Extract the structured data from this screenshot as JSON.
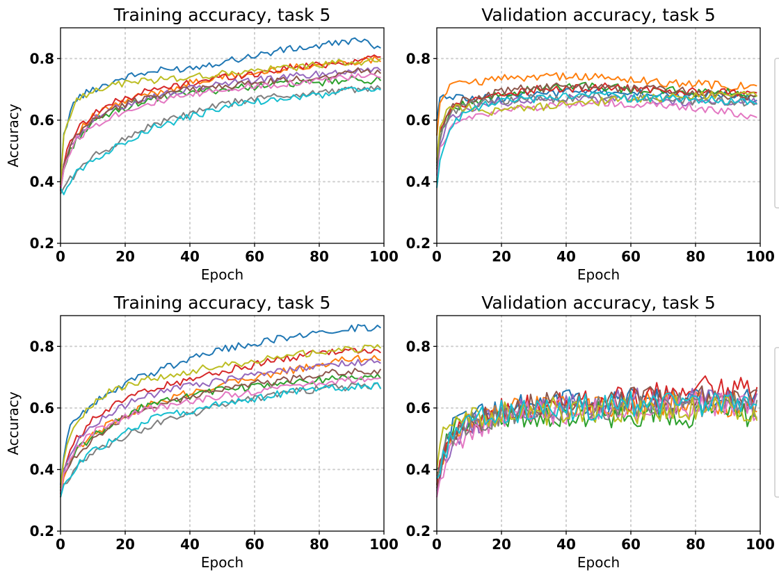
{
  "palette": [
    "#1f77b4",
    "#ff7f0e",
    "#2ca02c",
    "#d62728",
    "#9467bd",
    "#8c564b",
    "#e377c2",
    "#7f7f7f",
    "#bcbd22",
    "#17becf"
  ],
  "chart_data": [
    {
      "type": "line",
      "title": "Training accuracy, task 5",
      "xlabel": "Epoch",
      "ylabel": "Accuracy",
      "xlim": [
        0,
        100
      ],
      "ylim": [
        0.2,
        0.9
      ],
      "xticks": [
        0,
        20,
        40,
        60,
        80,
        100
      ],
      "yticks": [
        0.2,
        0.4,
        0.6,
        0.8
      ],
      "xtick_labels": [
        "0",
        "20",
        "40",
        "60",
        "80",
        "100"
      ],
      "ytick_labels": [
        "0.2",
        "0.4",
        "0.6",
        "0.8"
      ],
      "grid": true,
      "x": [
        0,
        1,
        3,
        5,
        10,
        15,
        20,
        25,
        30,
        40,
        50,
        60,
        70,
        80,
        90,
        99
      ],
      "series": [
        {
          "color": "#1f77b4",
          "values": [
            0.4,
            0.55,
            0.63,
            0.67,
            0.7,
            0.72,
            0.74,
            0.75,
            0.76,
            0.77,
            0.79,
            0.81,
            0.83,
            0.84,
            0.86,
            0.84
          ]
        },
        {
          "color": "#ff7f0e",
          "values": [
            0.38,
            0.45,
            0.52,
            0.56,
            0.61,
            0.64,
            0.66,
            0.68,
            0.69,
            0.72,
            0.74,
            0.75,
            0.77,
            0.78,
            0.79,
            0.8
          ]
        },
        {
          "color": "#2ca02c",
          "values": [
            0.37,
            0.44,
            0.5,
            0.54,
            0.59,
            0.62,
            0.64,
            0.66,
            0.67,
            0.69,
            0.7,
            0.71,
            0.72,
            0.72,
            0.73,
            0.73
          ]
        },
        {
          "color": "#d62728",
          "values": [
            0.38,
            0.46,
            0.53,
            0.57,
            0.62,
            0.65,
            0.67,
            0.69,
            0.7,
            0.72,
            0.74,
            0.75,
            0.77,
            0.78,
            0.79,
            0.81
          ]
        },
        {
          "color": "#9467bd",
          "values": [
            0.37,
            0.45,
            0.51,
            0.55,
            0.6,
            0.63,
            0.65,
            0.67,
            0.68,
            0.7,
            0.72,
            0.73,
            0.74,
            0.75,
            0.76,
            0.77
          ]
        },
        {
          "color": "#8c564b",
          "values": [
            0.37,
            0.45,
            0.51,
            0.55,
            0.6,
            0.63,
            0.65,
            0.67,
            0.68,
            0.7,
            0.71,
            0.72,
            0.73,
            0.74,
            0.76,
            0.76
          ]
        },
        {
          "color": "#e377c2",
          "values": [
            0.37,
            0.44,
            0.5,
            0.54,
            0.58,
            0.61,
            0.63,
            0.65,
            0.66,
            0.68,
            0.7,
            0.71,
            0.72,
            0.73,
            0.74,
            0.74
          ]
        },
        {
          "color": "#7f7f7f",
          "values": [
            0.36,
            0.38,
            0.41,
            0.43,
            0.48,
            0.51,
            0.54,
            0.57,
            0.59,
            0.62,
            0.65,
            0.67,
            0.68,
            0.69,
            0.7,
            0.7
          ]
        },
        {
          "color": "#bcbd22",
          "values": [
            0.39,
            0.55,
            0.62,
            0.66,
            0.7,
            0.71,
            0.72,
            0.73,
            0.73,
            0.74,
            0.75,
            0.76,
            0.77,
            0.78,
            0.79,
            0.79
          ]
        },
        {
          "color": "#17becf",
          "values": [
            0.38,
            0.37,
            0.4,
            0.43,
            0.47,
            0.5,
            0.53,
            0.56,
            0.58,
            0.61,
            0.64,
            0.66,
            0.67,
            0.68,
            0.7,
            0.7
          ]
        }
      ]
    },
    {
      "type": "line",
      "title": "Validation accuracy, task 5",
      "xlabel": "Epoch",
      "ylabel": "",
      "xlim": [
        0,
        100
      ],
      "ylim": [
        0.2,
        0.9
      ],
      "xticks": [
        0,
        20,
        40,
        60,
        80,
        100
      ],
      "yticks": [
        0.2,
        0.4,
        0.6,
        0.8
      ],
      "xtick_labels": [
        "0",
        "20",
        "40",
        "60",
        "80",
        "100"
      ],
      "ytick_labels": [
        "0.2",
        "0.4",
        "0.6",
        "0.8"
      ],
      "grid": true,
      "x": [
        0,
        1,
        3,
        5,
        10,
        15,
        20,
        25,
        30,
        40,
        50,
        60,
        70,
        80,
        90,
        99
      ],
      "series": [
        {
          "color": "#1f77b4",
          "values": [
            0.6,
            0.66,
            0.68,
            0.68,
            0.67,
            0.67,
            0.67,
            0.68,
            0.68,
            0.69,
            0.69,
            0.69,
            0.68,
            0.68,
            0.68,
            0.67
          ]
        },
        {
          "color": "#ff7f0e",
          "values": [
            0.55,
            0.65,
            0.7,
            0.71,
            0.72,
            0.73,
            0.74,
            0.74,
            0.74,
            0.74,
            0.74,
            0.73,
            0.72,
            0.72,
            0.71,
            0.71
          ]
        },
        {
          "color": "#2ca02c",
          "values": [
            0.45,
            0.55,
            0.6,
            0.63,
            0.66,
            0.67,
            0.68,
            0.69,
            0.7,
            0.71,
            0.71,
            0.7,
            0.7,
            0.69,
            0.69,
            0.68
          ]
        },
        {
          "color": "#d62728",
          "values": [
            0.47,
            0.56,
            0.61,
            0.64,
            0.66,
            0.67,
            0.68,
            0.69,
            0.7,
            0.7,
            0.71,
            0.7,
            0.7,
            0.69,
            0.69,
            0.68
          ]
        },
        {
          "color": "#9467bd",
          "values": [
            0.44,
            0.53,
            0.58,
            0.61,
            0.64,
            0.65,
            0.66,
            0.66,
            0.67,
            0.67,
            0.67,
            0.67,
            0.66,
            0.66,
            0.66,
            0.66
          ]
        },
        {
          "color": "#8c564b",
          "values": [
            0.46,
            0.56,
            0.62,
            0.65,
            0.67,
            0.68,
            0.69,
            0.7,
            0.7,
            0.71,
            0.71,
            0.7,
            0.7,
            0.69,
            0.68,
            0.68
          ]
        },
        {
          "color": "#e377c2",
          "values": [
            0.42,
            0.5,
            0.55,
            0.58,
            0.61,
            0.62,
            0.63,
            0.64,
            0.64,
            0.65,
            0.66,
            0.65,
            0.65,
            0.64,
            0.63,
            0.6
          ]
        },
        {
          "color": "#7f7f7f",
          "values": [
            0.44,
            0.54,
            0.6,
            0.63,
            0.65,
            0.66,
            0.66,
            0.67,
            0.67,
            0.67,
            0.68,
            0.67,
            0.67,
            0.66,
            0.66,
            0.66
          ]
        },
        {
          "color": "#bcbd22",
          "values": [
            0.47,
            0.57,
            0.62,
            0.64,
            0.64,
            0.63,
            0.63,
            0.64,
            0.64,
            0.65,
            0.66,
            0.67,
            0.67,
            0.68,
            0.68,
            0.68
          ]
        },
        {
          "color": "#17becf",
          "values": [
            0.38,
            0.48,
            0.55,
            0.59,
            0.63,
            0.65,
            0.66,
            0.67,
            0.67,
            0.68,
            0.68,
            0.67,
            0.67,
            0.67,
            0.66,
            0.66
          ]
        }
      ]
    },
    {
      "type": "line",
      "title": "Training accuracy, task 5",
      "xlabel": "Epoch",
      "ylabel": "Accuracy",
      "xlim": [
        0,
        100
      ],
      "ylim": [
        0.2,
        0.9
      ],
      "xticks": [
        0,
        20,
        40,
        60,
        80,
        100
      ],
      "yticks": [
        0.2,
        0.4,
        0.6,
        0.8
      ],
      "xtick_labels": [
        "0",
        "20",
        "40",
        "60",
        "80",
        "100"
      ],
      "ytick_labels": [
        "0.2",
        "0.4",
        "0.6",
        "0.8"
      ],
      "grid": true,
      "x": [
        0,
        1,
        3,
        5,
        10,
        15,
        20,
        25,
        30,
        40,
        50,
        60,
        70,
        80,
        90,
        99
      ],
      "series": [
        {
          "color": "#1f77b4",
          "values": [
            0.35,
            0.45,
            0.54,
            0.57,
            0.61,
            0.65,
            0.68,
            0.7,
            0.72,
            0.76,
            0.79,
            0.81,
            0.83,
            0.85,
            0.86,
            0.86
          ]
        },
        {
          "color": "#ff7f0e",
          "values": [
            0.31,
            0.37,
            0.42,
            0.46,
            0.51,
            0.55,
            0.58,
            0.6,
            0.62,
            0.65,
            0.68,
            0.7,
            0.72,
            0.74,
            0.76,
            0.76
          ]
        },
        {
          "color": "#2ca02c",
          "values": [
            0.33,
            0.39,
            0.43,
            0.46,
            0.51,
            0.54,
            0.57,
            0.6,
            0.62,
            0.64,
            0.66,
            0.67,
            0.68,
            0.69,
            0.7,
            0.7
          ]
        },
        {
          "color": "#d62728",
          "values": [
            0.32,
            0.4,
            0.46,
            0.5,
            0.56,
            0.6,
            0.63,
            0.65,
            0.67,
            0.69,
            0.72,
            0.74,
            0.76,
            0.78,
            0.79,
            0.78
          ]
        },
        {
          "color": "#9467bd",
          "values": [
            0.33,
            0.4,
            0.45,
            0.49,
            0.54,
            0.58,
            0.61,
            0.63,
            0.65,
            0.67,
            0.69,
            0.71,
            0.72,
            0.74,
            0.75,
            0.75
          ]
        },
        {
          "color": "#8c564b",
          "values": [
            0.33,
            0.38,
            0.42,
            0.45,
            0.5,
            0.54,
            0.57,
            0.59,
            0.61,
            0.63,
            0.66,
            0.68,
            0.69,
            0.71,
            0.72,
            0.72
          ]
        },
        {
          "color": "#e377c2",
          "values": [
            0.32,
            0.38,
            0.43,
            0.47,
            0.52,
            0.55,
            0.57,
            0.59,
            0.6,
            0.62,
            0.64,
            0.65,
            0.67,
            0.68,
            0.69,
            0.7
          ]
        },
        {
          "color": "#7f7f7f",
          "values": [
            0.31,
            0.35,
            0.38,
            0.41,
            0.45,
            0.48,
            0.51,
            0.53,
            0.55,
            0.58,
            0.61,
            0.63,
            0.65,
            0.66,
            0.67,
            0.67
          ]
        },
        {
          "color": "#bcbd22",
          "values": [
            0.34,
            0.44,
            0.52,
            0.56,
            0.61,
            0.65,
            0.67,
            0.69,
            0.7,
            0.72,
            0.74,
            0.75,
            0.77,
            0.78,
            0.79,
            0.8
          ]
        },
        {
          "color": "#17becf",
          "values": [
            0.31,
            0.35,
            0.38,
            0.41,
            0.46,
            0.49,
            0.52,
            0.55,
            0.57,
            0.59,
            0.62,
            0.63,
            0.65,
            0.66,
            0.67,
            0.67
          ]
        }
      ]
    },
    {
      "type": "line",
      "title": "Validation accuracy, task 5",
      "xlabel": "Epoch",
      "ylabel": "",
      "xlim": [
        0,
        100
      ],
      "ylim": [
        0.2,
        0.9
      ],
      "xticks": [
        0,
        20,
        40,
        60,
        80,
        100
      ],
      "yticks": [
        0.2,
        0.4,
        0.6,
        0.8
      ],
      "xtick_labels": [
        "0",
        "20",
        "40",
        "60",
        "80",
        "100"
      ],
      "ytick_labels": [
        "0.2",
        "0.4",
        "0.6",
        "0.8"
      ],
      "grid": true,
      "x": [
        0,
        1,
        3,
        5,
        10,
        15,
        20,
        25,
        30,
        40,
        50,
        60,
        70,
        80,
        90,
        99
      ],
      "series": [
        {
          "color": "#1f77b4",
          "values": [
            0.4,
            0.42,
            0.5,
            0.55,
            0.57,
            0.58,
            0.6,
            0.62,
            0.6,
            0.63,
            0.61,
            0.62,
            0.63,
            0.62,
            0.63,
            0.62
          ]
        },
        {
          "color": "#ff7f0e",
          "values": [
            0.38,
            0.41,
            0.48,
            0.52,
            0.55,
            0.57,
            0.58,
            0.59,
            0.6,
            0.6,
            0.61,
            0.61,
            0.62,
            0.62,
            0.61,
            0.61
          ]
        },
        {
          "color": "#2ca02c",
          "values": [
            0.39,
            0.42,
            0.49,
            0.53,
            0.56,
            0.57,
            0.55,
            0.57,
            0.56,
            0.57,
            0.58,
            0.57,
            0.58,
            0.58,
            0.59,
            0.58
          ]
        },
        {
          "color": "#d62728",
          "values": [
            0.35,
            0.4,
            0.47,
            0.51,
            0.55,
            0.57,
            0.59,
            0.6,
            0.61,
            0.62,
            0.62,
            0.63,
            0.64,
            0.67,
            0.66,
            0.65
          ]
        },
        {
          "color": "#9467bd",
          "values": [
            0.33,
            0.38,
            0.45,
            0.5,
            0.54,
            0.56,
            0.58,
            0.59,
            0.6,
            0.61,
            0.61,
            0.62,
            0.62,
            0.63,
            0.62,
            0.62
          ]
        },
        {
          "color": "#8c564b",
          "values": [
            0.34,
            0.39,
            0.46,
            0.51,
            0.55,
            0.57,
            0.58,
            0.6,
            0.61,
            0.62,
            0.62,
            0.63,
            0.62,
            0.64,
            0.63,
            0.63
          ]
        },
        {
          "color": "#e377c2",
          "values": [
            0.31,
            0.36,
            0.43,
            0.48,
            0.52,
            0.54,
            0.56,
            0.57,
            0.58,
            0.59,
            0.59,
            0.6,
            0.6,
            0.61,
            0.61,
            0.6
          ]
        },
        {
          "color": "#7f7f7f",
          "values": [
            0.37,
            0.4,
            0.47,
            0.51,
            0.55,
            0.56,
            0.58,
            0.58,
            0.59,
            0.6,
            0.6,
            0.6,
            0.61,
            0.61,
            0.61,
            0.6
          ]
        },
        {
          "color": "#bcbd22",
          "values": [
            0.4,
            0.48,
            0.54,
            0.56,
            0.57,
            0.58,
            0.58,
            0.59,
            0.59,
            0.59,
            0.59,
            0.59,
            0.6,
            0.6,
            0.6,
            0.59
          ]
        },
        {
          "color": "#17becf",
          "values": [
            0.37,
            0.4,
            0.47,
            0.52,
            0.55,
            0.57,
            0.58,
            0.59,
            0.59,
            0.6,
            0.6,
            0.61,
            0.61,
            0.61,
            0.61,
            0.61
          ]
        }
      ]
    }
  ]
}
